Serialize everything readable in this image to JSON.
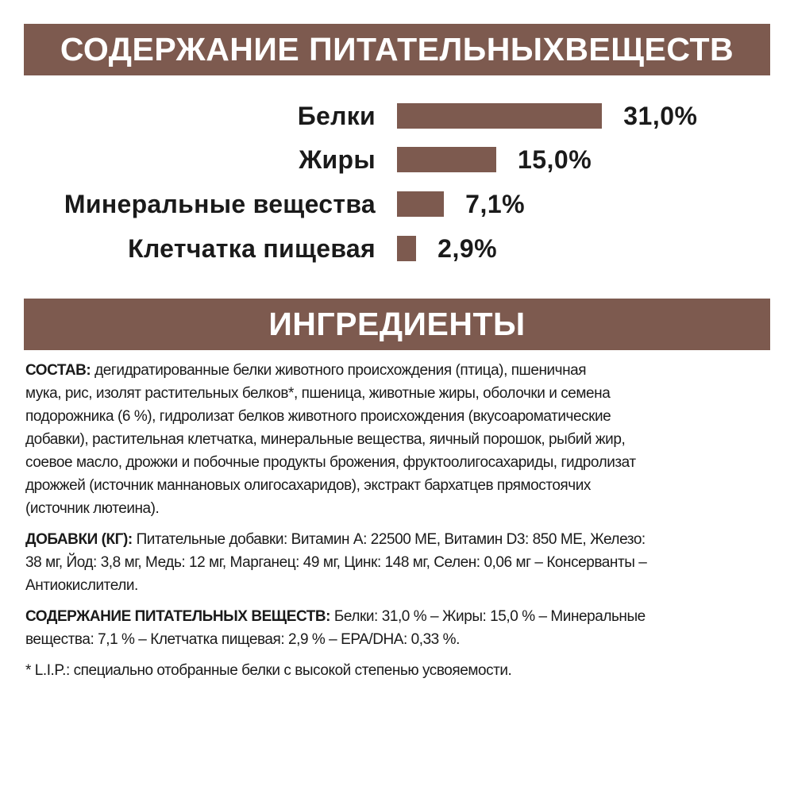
{
  "header": {
    "title": "СОДЕРЖАНИЕ ПИТАТЕЛЬНЫХВЕЩЕСТВ"
  },
  "chart_data": {
    "type": "bar",
    "orientation": "horizontal",
    "categories": [
      "Белки",
      "Жиры",
      "Минеральные вещества",
      "Клетчатка пищевая"
    ],
    "values": [
      31.0,
      15.0,
      7.1,
      2.9
    ],
    "value_labels": [
      "31,0%",
      "15,0%",
      "7,1%",
      "2,9%"
    ],
    "unit": "%",
    "bar_color": "#7d5a4f"
  },
  "ingredients": {
    "title": "ИНГРЕДИЕНТЫ",
    "paragraphs": [
      {
        "lead": "СОСТАВ:",
        "lines": [
          " дегидратированные белки животного происхождения (птица), пшеничная",
          "мука, рис, изолят растительных белков*, пшеница, животные жиры, оболочки и семена",
          "подорожника (6 %), гидролизат белков животного происхождения (вкусоароматические",
          "добавки), растительная клетчатка, минеральные вещества, яичный порошок, рыбий жир,",
          "соевое масло, дрожжи и побочные продукты брожения, фруктоолигосахариды, гидролизат",
          "дрожжей (источник маннановых олигосахаридов), экстракт бархатцев прямостоячих",
          "(источник лютеина)."
        ]
      },
      {
        "lead": "ДОБАВКИ (КГ):",
        "lines": [
          " Питательные добавки: Витамин А: 22500 МЕ, Витамин D3: 850 МЕ, Железо:",
          "38 мг, Йод: 3,8 мг, Медь: 12 мг, Марганец: 49 мг, Цинк: 148 мг, Селен: 0,06 мг – Консерванты –",
          "Антиокислители."
        ]
      },
      {
        "lead": "СОДЕРЖАНИЕ ПИТАТЕЛЬНЫХ ВЕЩЕСТВ:",
        "lines": [
          " Белки: 31,0 % – Жиры: 15,0 % – Минеральные",
          "вещества: 7,1 % – Клетчатка пищевая: 2,9 % – EPA/DHA: 0,33 %."
        ]
      },
      {
        "lead": "",
        "lines": [
          "* L.I.P.: специально отобранные белки с высокой степенью усвояемости."
        ]
      }
    ]
  }
}
